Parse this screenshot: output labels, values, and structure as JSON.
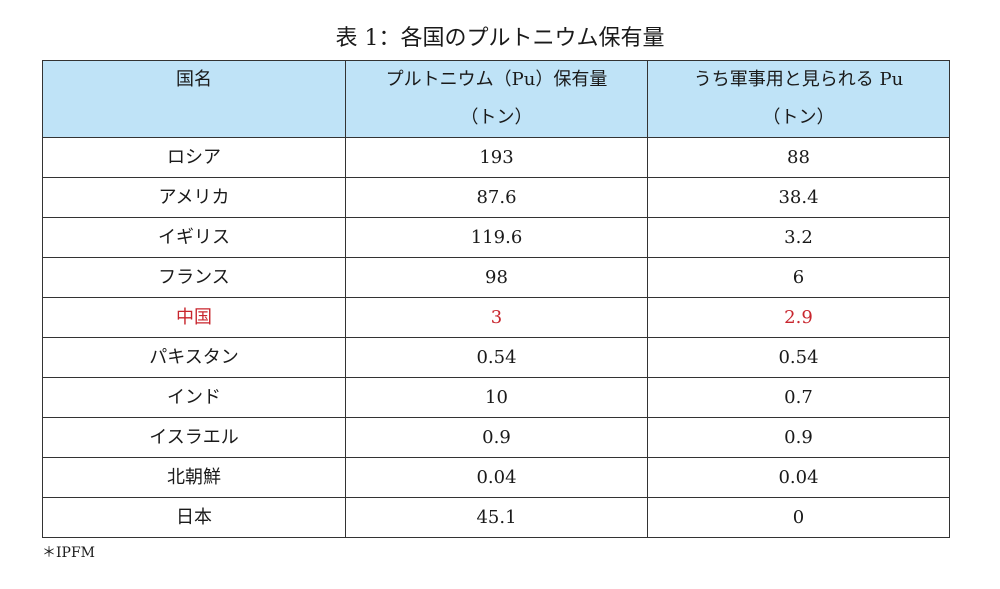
{
  "title": "表 1：各国のプルトニウム保有量",
  "table": {
    "headers": [
      {
        "line1": "国名",
        "line2": ""
      },
      {
        "line1": "プルトニウム（Pu）保有量",
        "line2": "（トン）"
      },
      {
        "line1": "うち軍事用と見られる Pu",
        "line2": "（トン）"
      }
    ],
    "rows": [
      {
        "country": "ロシア",
        "total": "193",
        "military": "88",
        "highlight": false
      },
      {
        "country": "アメリカ",
        "total": "87.6",
        "military": "38.4",
        "highlight": false
      },
      {
        "country": "イギリス",
        "total": "119.6",
        "military": "3.2",
        "highlight": false
      },
      {
        "country": "フランス",
        "total": "98",
        "military": "6",
        "highlight": false
      },
      {
        "country": "中国",
        "total": "3",
        "military": "2.9",
        "highlight": true
      },
      {
        "country": "パキスタン",
        "total": "0.54",
        "military": "0.54",
        "highlight": false
      },
      {
        "country": "インド",
        "total": "10",
        "military": "0.7",
        "highlight": false
      },
      {
        "country": "イスラエル",
        "total": "0.9",
        "military": "0.9",
        "highlight": false
      },
      {
        "country": "北朝鮮",
        "total": "0.04",
        "military": "0.04",
        "highlight": false
      },
      {
        "country": "日本",
        "total": "45.1",
        "military": "0",
        "highlight": false
      }
    ]
  },
  "source": "＊IPFM",
  "colors": {
    "header_bg": "#bfe3f7",
    "highlight_text": "#c8262e",
    "border": "#333333"
  }
}
